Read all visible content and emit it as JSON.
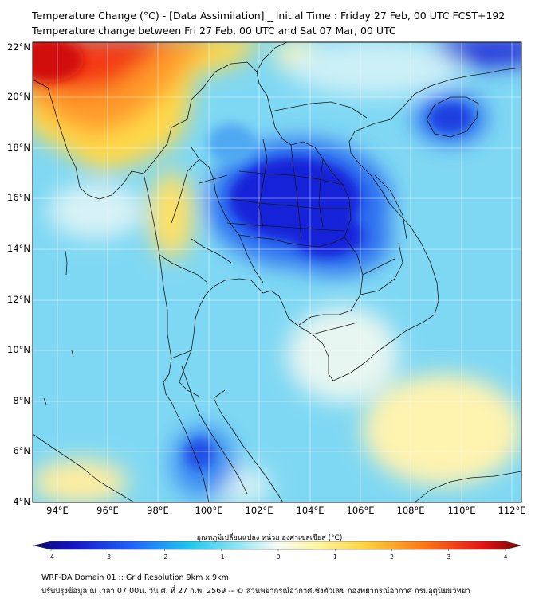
{
  "header": {
    "title_line1": "Temperature Change (°C) - [Data Assimilation] _ Initial Time : Friday 27 Feb, 00 UTC FCST+192",
    "title_line2": "Temperature change between Fri 27 Feb, 00 UTC and Sat 07 Mar, 00 UTC"
  },
  "map": {
    "lat_labels": [
      "22°N",
      "20°N",
      "18°N",
      "16°N",
      "14°N",
      "12°N",
      "10°N",
      "8°N",
      "6°N",
      "4°N"
    ],
    "lon_labels": [
      "94°E",
      "96°E",
      "98°E",
      "100°E",
      "102°E",
      "104°E",
      "106°E",
      "108°E",
      "110°E",
      "112°E"
    ]
  },
  "colorbar": {
    "title": "อุณหภูมิเปลี่ยนแปลง หน่วย องศาเซลเซียส (°C)",
    "ticks": [
      "-4",
      "-3",
      "-2",
      "-1",
      "0",
      "1",
      "2",
      "3",
      "4"
    ],
    "min": -4,
    "max": 4
  },
  "footer": {
    "line1": "WRF-DA Domain 01 :: Grid Resolution 9km x 9km",
    "line2": "ปรับปรุงข้อมูล ณ เวลา 07:00น. วัน ศ. ที่ 27 ก.พ. 2569 -- © ส่วนพยากรณ์อากาศเชิงตัวเลข กองพยากรณ์อากาศ กรมอุตุนิยมวิทยา"
  }
}
